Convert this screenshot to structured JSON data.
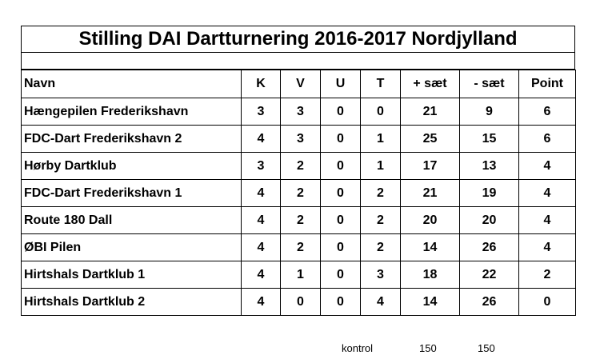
{
  "title": "Stilling DAI Dartturnering 2016-2017 Nordjylland",
  "headers": [
    "Navn",
    "K",
    "V",
    "U",
    "T",
    "+ sæt",
    "- sæt",
    "Point"
  ],
  "rows": [
    [
      "Hængepilen Frederikshavn",
      "3",
      "3",
      "0",
      "0",
      "21",
      "9",
      "6"
    ],
    [
      "FDC-Dart Frederikshavn 2",
      "4",
      "3",
      "0",
      "1",
      "25",
      "15",
      "6"
    ],
    [
      "Hørby Dartklub",
      "3",
      "2",
      "0",
      "1",
      "17",
      "13",
      "4"
    ],
    [
      "FDC-Dart Frederikshavn 1",
      "4",
      "2",
      "0",
      "2",
      "21",
      "19",
      "4"
    ],
    [
      "Route 180 Dall",
      "4",
      "2",
      "0",
      "2",
      "20",
      "20",
      "4"
    ],
    [
      "ØBI Pilen",
      "4",
      "2",
      "0",
      "2",
      "14",
      "26",
      "4"
    ],
    [
      "Hirtshals Dartklub 1",
      "4",
      "1",
      "0",
      "3",
      "18",
      "22",
      "2"
    ],
    [
      "Hirtshals Dartklub 2",
      "4",
      "0",
      "0",
      "4",
      "14",
      "26",
      "0"
    ]
  ],
  "footer": {
    "label": "kontrol",
    "plus_total": "150",
    "minus_total": "150"
  }
}
